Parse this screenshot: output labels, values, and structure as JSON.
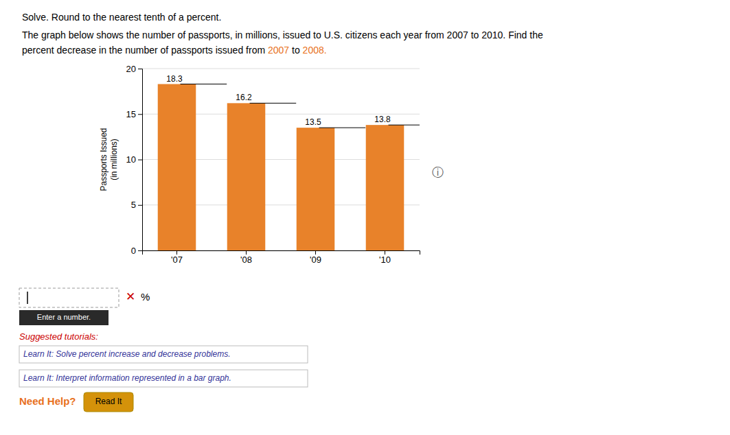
{
  "chart_data": {
    "type": "bar",
    "title": "Solve. Round to the nearest tenth of a percent.",
    "subtitle": [
      [
        {
          "text": "The graph below shows the number of passports, in millions, issued to U.S. citizens each year from 2007 to 2010. Find the"
        }
      ],
      [
        {
          "text": "percent decrease in the number of passports issued from "
        },
        {
          "text": "2007",
          "color": "#E87020"
        },
        {
          "text": " to "
        },
        {
          "text": "2008.",
          "color": "#E87020"
        }
      ]
    ],
    "categories": [
      "'07",
      "'08",
      "'09",
      "'10"
    ],
    "values": [
      18.3,
      16.2,
      13.5,
      13.8
    ],
    "color": "#E8822A",
    "ylabel": [
      "Passports Issued",
      "(in millions)"
    ],
    "ylim": [
      0,
      20
    ],
    "yticks": [
      0,
      5,
      10,
      15,
      20
    ],
    "grid": true,
    "data_labels": true,
    "annotations": [
      {
        "text": "ⓘ"
      },
      {
        "text": "✕",
        "color": "#CC0000"
      },
      {
        "text": "%"
      },
      {
        "text": "Enter a number."
      },
      {
        "text": "Suggested tutorials:",
        "color": "#CC0000"
      },
      {
        "text": "Learn It: Solve percent increase and decrease problems."
      },
      {
        "text": "Learn It: Interpret information represented in a bar graph."
      },
      {
        "text": "Need Help?",
        "color": "#E87020"
      },
      {
        "text": "Read It"
      }
    ]
  }
}
